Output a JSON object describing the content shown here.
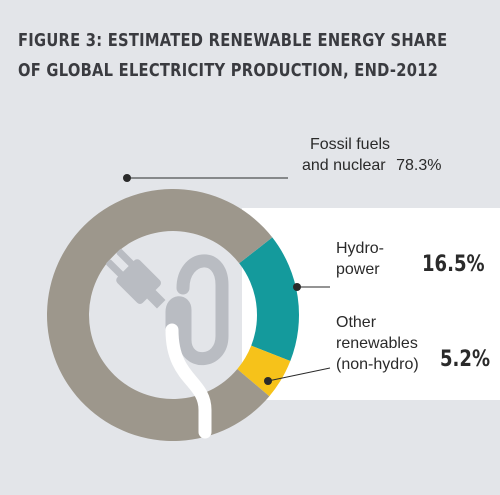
{
  "title": {
    "line1": "FIGURE 3: ESTIMATED RENEWABLE ENERGY SHARE",
    "line2": "OF GLOBAL ELECTRICITY PRODUCTION, END-2012"
  },
  "labels": {
    "fossil_line1": "Fossil fuels",
    "fossil_line2": "and nuclear",
    "fossil_pct": "78.3%",
    "hydro_line1": "Hydro-",
    "hydro_line2": "power",
    "hydro_pct": "16.5%",
    "other_line1": "Other",
    "other_line2": "renewables",
    "other_line3": "(non-hydro)",
    "other_pct": "5.2%"
  },
  "colors": {
    "background": "#e3e5e9",
    "fossil": "#9d978c",
    "hydro": "#149a9c",
    "other": "#f6c21a",
    "plug_icon": "#b9bcc2",
    "cable": "#ffffff"
  },
  "chart_data": {
    "type": "pie",
    "title": "FIGURE 3: ESTIMATED RENEWABLE ENERGY SHARE OF GLOBAL ELECTRICITY PRODUCTION, END-2012",
    "donut": true,
    "slices": [
      {
        "label": "Fossil fuels and nuclear",
        "value": 78.3
      },
      {
        "label": "Hydropower",
        "value": 16.5
      },
      {
        "label": "Other renewables (non-hydro)",
        "value": 5.2
      }
    ]
  }
}
